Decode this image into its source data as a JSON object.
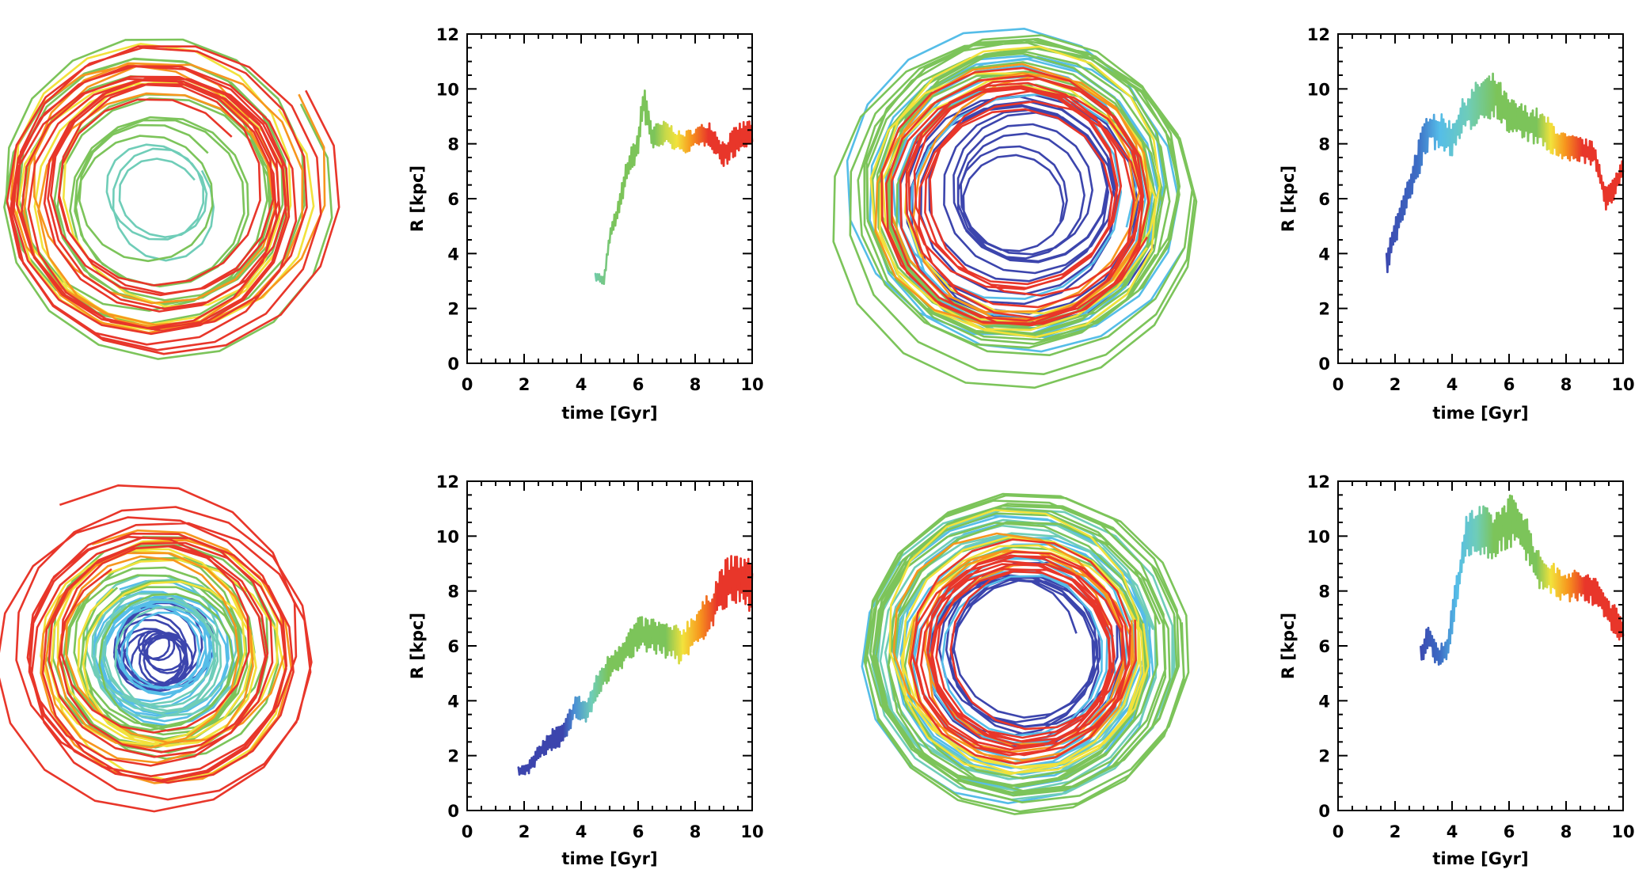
{
  "chart_data": [
    {
      "type": "line",
      "panel": "top-left",
      "description": "orbit",
      "x_range": [
        -14,
        14
      ],
      "y_range": [
        -14,
        14
      ],
      "segments": [
        {
          "color": "#6fcdb8",
          "r_start": 2.8,
          "r_end": 3.6,
          "turns": 3
        },
        {
          "color": "#7cc45a",
          "r_start": 4.2,
          "r_end": 10.6,
          "turns": 10
        },
        {
          "color": "#f2e23c",
          "r_start": 7.6,
          "r_end": 9.6,
          "turns": 4
        },
        {
          "color": "#f7961e",
          "r_start": 7.6,
          "r_end": 9.8,
          "turns": 4
        },
        {
          "color": "#e8362a",
          "r_start": 6.6,
          "r_end": 10.6,
          "turns": 12
        }
      ]
    },
    {
      "type": "line",
      "panel": "top-middle-left",
      "xlabel": "time [Gyr]",
      "ylabel": "R [kpc]",
      "xlim": [
        0,
        10
      ],
      "ylim": [
        0,
        12
      ],
      "xticks": [
        0,
        2,
        4,
        6,
        8,
        10
      ],
      "yticks": [
        0,
        2,
        4,
        6,
        8,
        10,
        12
      ],
      "x_minor": 0.5,
      "y_minor": 0.5,
      "knots": [
        [
          4.5,
          3.2
        ],
        [
          4.8,
          3.0
        ],
        [
          5.0,
          4.6
        ],
        [
          5.3,
          5.6
        ],
        [
          5.6,
          7.0
        ],
        [
          6.0,
          8.0
        ],
        [
          6.2,
          9.6
        ],
        [
          6.5,
          8.2
        ],
        [
          7.0,
          8.4
        ],
        [
          7.5,
          8.0
        ],
        [
          8.0,
          8.2
        ],
        [
          8.5,
          8.4
        ],
        [
          9.0,
          7.6
        ],
        [
          9.5,
          8.2
        ],
        [
          10.0,
          8.4
        ]
      ],
      "noise": [
        0.35,
        0.3,
        0.5,
        0.6,
        0.9,
        1.0,
        1.3,
        1.0,
        0.9,
        0.8,
        0.8,
        0.9,
        1.0,
        1.1,
        1.1
      ],
      "color_stops": [
        [
          4.4,
          "#6fcdb8"
        ],
        [
          5.2,
          "#7cc45a"
        ],
        [
          6.6,
          "#7cc45a"
        ],
        [
          7.0,
          "#c8d94a"
        ],
        [
          7.4,
          "#f2e23c"
        ],
        [
          7.9,
          "#f7961e"
        ],
        [
          8.5,
          "#e8362a"
        ],
        [
          10.0,
          "#e8362a"
        ]
      ]
    },
    {
      "type": "line",
      "panel": "top-middle-right",
      "description": "orbit",
      "x_range": [
        -14,
        14
      ],
      "y_range": [
        -14,
        14
      ],
      "segments": [
        {
          "color": "#3c45ad",
          "r_start": 3.2,
          "r_end": 8.4,
          "turns": 12
        },
        {
          "color": "#55bde8",
          "r_start": 7.4,
          "r_end": 10.6,
          "turns": 8
        },
        {
          "color": "#7cc45a",
          "r_start": 8.6,
          "r_end": 11.4,
          "turns": 14
        },
        {
          "color": "#f2e23c",
          "r_start": 8.4,
          "r_end": 9.4,
          "turns": 4
        },
        {
          "color": "#f7961e",
          "r_start": 8.0,
          "r_end": 8.6,
          "turns": 3
        },
        {
          "color": "#e8362a",
          "r_start": 6.4,
          "r_end": 8.8,
          "turns": 10
        }
      ]
    },
    {
      "type": "line",
      "panel": "top-right",
      "xlabel": "time [Gyr]",
      "ylabel": "R [kpc]",
      "xlim": [
        0,
        10
      ],
      "ylim": [
        0,
        12
      ],
      "xticks": [
        0,
        2,
        4,
        6,
        8,
        10
      ],
      "yticks": [
        0,
        2,
        4,
        6,
        8,
        10,
        12
      ],
      "x_minor": 0.5,
      "y_minor": 0.5,
      "knots": [
        [
          1.7,
          3.6
        ],
        [
          2.0,
          4.8
        ],
        [
          2.4,
          6.0
        ],
        [
          2.8,
          7.4
        ],
        [
          3.2,
          8.6
        ],
        [
          3.6,
          8.4
        ],
        [
          4.0,
          8.2
        ],
        [
          4.4,
          9.0
        ],
        [
          5.0,
          9.6
        ],
        [
          5.5,
          9.8
        ],
        [
          6.0,
          9.0
        ],
        [
          6.5,
          8.8
        ],
        [
          7.0,
          8.6
        ],
        [
          7.5,
          8.2
        ],
        [
          8.0,
          7.8
        ],
        [
          8.5,
          7.8
        ],
        [
          9.0,
          7.6
        ],
        [
          9.4,
          6.0
        ],
        [
          9.7,
          6.4
        ],
        [
          10.0,
          7.2
        ]
      ],
      "noise": [
        0.8,
        1.0,
        1.1,
        1.4,
        1.5,
        1.4,
        1.3,
        1.4,
        1.7,
        1.6,
        1.4,
        1.3,
        1.4,
        1.3,
        1.1,
        0.9,
        0.9,
        0.9,
        0.8,
        0.7
      ],
      "color_stops": [
        [
          1.6,
          "#3c45ad"
        ],
        [
          2.8,
          "#3c6cc4"
        ],
        [
          3.6,
          "#55bde8"
        ],
        [
          4.6,
          "#6fcdb8"
        ],
        [
          5.6,
          "#7cc45a"
        ],
        [
          7.0,
          "#7cc45a"
        ],
        [
          7.5,
          "#f2e23c"
        ],
        [
          8.0,
          "#f7961e"
        ],
        [
          8.6,
          "#e8362a"
        ],
        [
          10.0,
          "#e8362a"
        ]
      ]
    },
    {
      "type": "line",
      "panel": "bottom-left",
      "description": "orbit",
      "x_range": [
        -14,
        14
      ],
      "y_range": [
        -14,
        14
      ],
      "segments": [
        {
          "color": "#3c45ad",
          "r_start": 0.8,
          "r_end": 3.2,
          "turns": 14
        },
        {
          "color": "#55bde8",
          "r_start": 2.6,
          "r_end": 4.6,
          "turns": 10
        },
        {
          "color": "#6fcdb8",
          "r_start": 3.4,
          "r_end": 5.0,
          "turns": 6
        },
        {
          "color": "#7cc45a",
          "r_start": 4.6,
          "r_end": 7.4,
          "turns": 10
        },
        {
          "color": "#f2e23c",
          "r_start": 5.4,
          "r_end": 8.0,
          "turns": 5
        },
        {
          "color": "#f7961e",
          "r_start": 6.0,
          "r_end": 8.4,
          "turns": 4
        },
        {
          "color": "#e8362a",
          "r_start": 6.4,
          "r_end": 10.4,
          "turns": 10
        }
      ]
    },
    {
      "type": "line",
      "panel": "bottom-middle-left",
      "xlabel": "time [Gyr]",
      "ylabel": "R [kpc]",
      "xlim": [
        0,
        10
      ],
      "ylim": [
        0,
        12
      ],
      "xticks": [
        0,
        2,
        4,
        6,
        8,
        10
      ],
      "yticks": [
        0,
        2,
        4,
        6,
        8,
        10,
        12
      ],
      "x_minor": 0.5,
      "y_minor": 0.5,
      "knots": [
        [
          1.8,
          1.4
        ],
        [
          2.2,
          1.6
        ],
        [
          2.6,
          2.2
        ],
        [
          3.0,
          2.6
        ],
        [
          3.4,
          2.8
        ],
        [
          3.8,
          3.8
        ],
        [
          4.2,
          3.6
        ],
        [
          4.6,
          4.6
        ],
        [
          5.0,
          5.2
        ],
        [
          5.5,
          5.8
        ],
        [
          6.0,
          6.4
        ],
        [
          6.5,
          6.4
        ],
        [
          7.0,
          6.2
        ],
        [
          7.5,
          6.0
        ],
        [
          8.0,
          6.6
        ],
        [
          8.5,
          7.2
        ],
        [
          9.0,
          8.2
        ],
        [
          9.5,
          8.4
        ],
        [
          10.0,
          8.2
        ]
      ],
      "noise": [
        0.5,
        0.5,
        0.6,
        0.8,
        0.8,
        0.9,
        0.9,
        1.0,
        1.1,
        1.2,
        1.3,
        1.3,
        1.3,
        1.4,
        1.4,
        1.5,
        1.9,
        2.0,
        1.9
      ],
      "color_stops": [
        [
          1.8,
          "#3c45ad"
        ],
        [
          3.4,
          "#3c45ad"
        ],
        [
          3.8,
          "#4a8fd4"
        ],
        [
          4.4,
          "#6fcdb8"
        ],
        [
          5.0,
          "#7cc45a"
        ],
        [
          7.0,
          "#7cc45a"
        ],
        [
          7.6,
          "#f2e23c"
        ],
        [
          8.2,
          "#f7961e"
        ],
        [
          8.8,
          "#e8362a"
        ],
        [
          10.0,
          "#e8362a"
        ]
      ]
    },
    {
      "type": "line",
      "panel": "bottom-middle-right",
      "description": "orbit",
      "x_range": [
        -14,
        14
      ],
      "y_range": [
        -14,
        14
      ],
      "segments": [
        {
          "color": "#3c45ad",
          "r_start": 5.4,
          "r_end": 7.0,
          "turns": 8
        },
        {
          "color": "#55bde8",
          "r_start": 6.6,
          "r_end": 10.8,
          "turns": 12
        },
        {
          "color": "#6fcdb8",
          "r_start": 9.4,
          "r_end": 11.6,
          "turns": 6
        },
        {
          "color": "#7cc45a",
          "r_start": 9.6,
          "r_end": 12.6,
          "turns": 12
        },
        {
          "color": "#f2e23c",
          "r_start": 8.6,
          "r_end": 9.8,
          "turns": 4
        },
        {
          "color": "#f7961e",
          "r_start": 7.6,
          "r_end": 8.6,
          "turns": 4
        },
        {
          "color": "#e8362a",
          "r_start": 6.6,
          "r_end": 8.2,
          "turns": 10
        }
      ]
    },
    {
      "type": "line",
      "panel": "bottom-right",
      "xlabel": "time [Gyr]",
      "ylabel": "R [kpc]",
      "xlim": [
        0,
        10
      ],
      "ylim": [
        0,
        12
      ],
      "xticks": [
        0,
        2,
        4,
        6,
        8,
        10
      ],
      "yticks": [
        0,
        2,
        4,
        6,
        8,
        10,
        12
      ],
      "x_minor": 0.5,
      "y_minor": 0.5,
      "knots": [
        [
          2.9,
          5.6
        ],
        [
          3.2,
          6.4
        ],
        [
          3.5,
          5.6
        ],
        [
          3.8,
          5.8
        ],
        [
          4.1,
          7.6
        ],
        [
          4.5,
          10.0
        ],
        [
          5.0,
          10.2
        ],
        [
          5.5,
          10.0
        ],
        [
          6.0,
          10.6
        ],
        [
          6.5,
          10.2
        ],
        [
          7.0,
          8.8
        ],
        [
          7.5,
          8.4
        ],
        [
          8.0,
          8.2
        ],
        [
          8.5,
          8.2
        ],
        [
          9.0,
          8.0
        ],
        [
          9.5,
          7.2
        ],
        [
          10.0,
          6.6
        ]
      ],
      "noise": [
        0.8,
        1.0,
        0.9,
        0.9,
        1.3,
        1.8,
        1.9,
        1.8,
        2.0,
        1.9,
        1.4,
        1.3,
        1.2,
        1.1,
        1.1,
        1.2,
        1.1
      ],
      "color_stops": [
        [
          2.8,
          "#3c45ad"
        ],
        [
          3.6,
          "#3c6cc4"
        ],
        [
          4.2,
          "#55bde8"
        ],
        [
          4.9,
          "#6fcdb8"
        ],
        [
          5.5,
          "#7cc45a"
        ],
        [
          7.0,
          "#7cc45a"
        ],
        [
          7.5,
          "#f2e23c"
        ],
        [
          8.1,
          "#f7961e"
        ],
        [
          8.7,
          "#e8362a"
        ],
        [
          10.0,
          "#e8362a"
        ]
      ]
    }
  ]
}
